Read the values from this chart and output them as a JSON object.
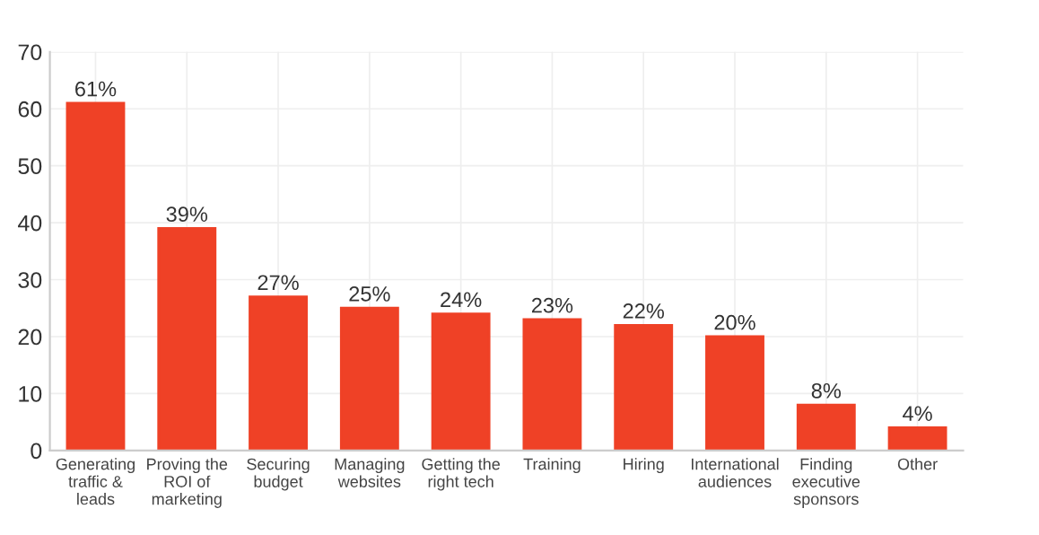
{
  "chart_data": {
    "type": "bar",
    "categories": [
      "Generating\ntraffic &\nleads",
      "Proving the\nROI of\nmarketing",
      "Securing\nbudget",
      "Managing\nwebsites",
      "Getting the\nright tech",
      "Training",
      "Hiring",
      "International\naudiences",
      "Finding\nexecutive\nsponsors",
      "Other"
    ],
    "values": [
      61,
      39,
      27,
      25,
      24,
      23,
      22,
      20,
      8,
      4
    ],
    "value_labels": [
      "61%",
      "39%",
      "27%",
      "25%",
      "24%",
      "23%",
      "22%",
      "20%",
      "8%",
      "4%"
    ],
    "color": "#ef4126",
    "ylim": [
      0,
      70
    ],
    "yticks": [
      0,
      10,
      20,
      30,
      40,
      50,
      60,
      70
    ],
    "grid": true
  }
}
